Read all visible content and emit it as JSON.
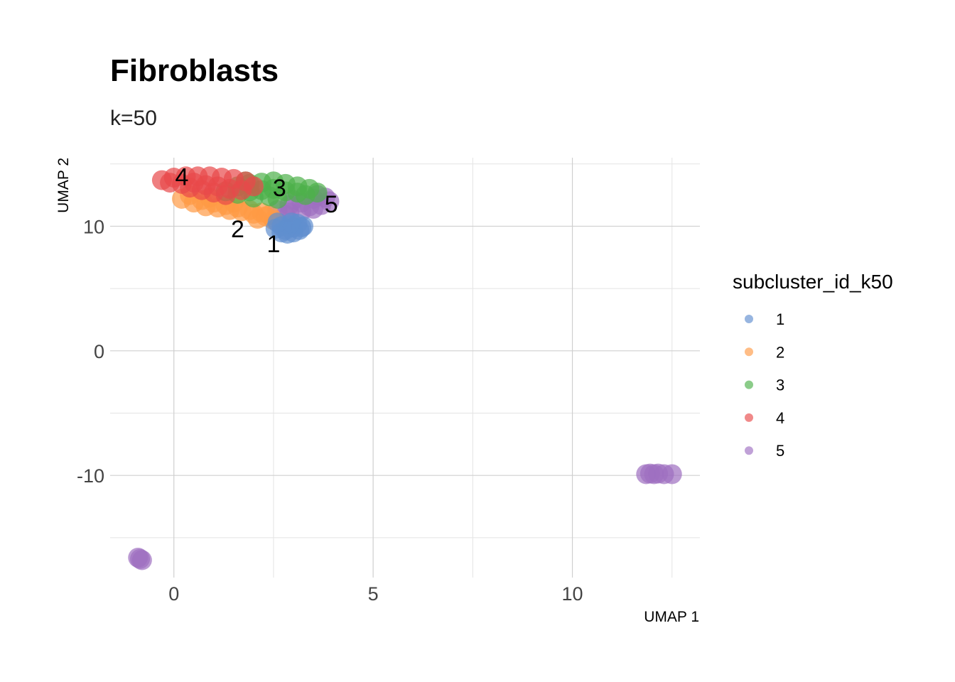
{
  "chart_data": {
    "type": "scatter",
    "title": "Fibroblasts",
    "subtitle": "k=50",
    "xlabel": "UMAP 1",
    "ylabel": "UMAP 2",
    "xlim": [
      -1.6,
      13.2
    ],
    "ylim": [
      -18.2,
      15.5
    ],
    "x_ticks": [
      0,
      5,
      10
    ],
    "y_ticks": [
      10,
      0,
      -10
    ],
    "x_tick_labels": [
      "0",
      "5",
      "10"
    ],
    "y_tick_labels": [
      "10",
      "0",
      "-10"
    ],
    "grid": true,
    "legend": {
      "title": "subcluster_id_k50",
      "position": "right"
    },
    "series": [
      {
        "name": "1",
        "color": "#5F8ECF",
        "points": [
          [
            2.55,
            9.8
          ],
          [
            2.7,
            9.5
          ],
          [
            2.85,
            9.4
          ],
          [
            3.0,
            9.5
          ],
          [
            3.15,
            9.7
          ],
          [
            3.25,
            10.0
          ],
          [
            3.1,
            10.2
          ],
          [
            2.9,
            10.1
          ],
          [
            2.7,
            10.0
          ],
          [
            2.6,
            10.3
          ],
          [
            3.0,
            9.9
          ],
          [
            2.8,
            9.7
          ],
          [
            3.2,
            9.9
          ],
          [
            2.95,
            10.3
          ]
        ],
        "label_pos": [
          2.5,
          8.6
        ]
      },
      {
        "name": "2",
        "color": "#FF9A45",
        "points": [
          [
            0.2,
            12.2
          ],
          [
            0.5,
            11.9
          ],
          [
            0.8,
            11.6
          ],
          [
            1.1,
            11.5
          ],
          [
            1.4,
            11.3
          ],
          [
            1.7,
            11.2
          ],
          [
            2.0,
            11.0
          ],
          [
            2.3,
            10.8
          ],
          [
            2.5,
            10.5
          ],
          [
            0.4,
            12.5
          ],
          [
            0.7,
            12.1
          ],
          [
            1.0,
            11.9
          ],
          [
            1.3,
            11.7
          ],
          [
            1.6,
            11.5
          ],
          [
            1.9,
            11.3
          ],
          [
            2.2,
            11.1
          ],
          [
            2.4,
            10.9
          ],
          [
            0.9,
            12.3
          ],
          [
            1.5,
            11.9
          ],
          [
            2.1,
            10.6
          ]
        ],
        "label_pos": [
          1.6,
          9.8
        ]
      },
      {
        "name": "3",
        "color": "#4DB04A",
        "points": [
          [
            1.3,
            12.8
          ],
          [
            1.6,
            13.2
          ],
          [
            1.9,
            13.4
          ],
          [
            2.2,
            13.5
          ],
          [
            2.5,
            13.6
          ],
          [
            2.8,
            13.4
          ],
          [
            3.1,
            13.2
          ],
          [
            3.4,
            13.0
          ],
          [
            3.6,
            12.7
          ],
          [
            1.6,
            12.6
          ],
          [
            1.9,
            12.8
          ],
          [
            2.2,
            12.9
          ],
          [
            2.5,
            13.0
          ],
          [
            2.8,
            12.8
          ],
          [
            3.1,
            12.7
          ],
          [
            2.0,
            12.3
          ],
          [
            2.4,
            12.4
          ],
          [
            3.3,
            12.5
          ],
          [
            1.8,
            13.6
          ],
          [
            2.6,
            12.2
          ]
        ],
        "label_pos": [
          2.65,
          13.1
        ]
      },
      {
        "name": "4",
        "color": "#E8494A",
        "points": [
          [
            -0.3,
            13.7
          ],
          [
            0.0,
            13.9
          ],
          [
            0.3,
            14.0
          ],
          [
            0.6,
            14.0
          ],
          [
            0.9,
            14.0
          ],
          [
            1.2,
            13.9
          ],
          [
            1.5,
            13.8
          ],
          [
            1.8,
            13.6
          ],
          [
            2.0,
            13.2
          ],
          [
            0.2,
            13.4
          ],
          [
            0.5,
            13.5
          ],
          [
            0.8,
            13.3
          ],
          [
            1.1,
            13.2
          ],
          [
            1.4,
            13.0
          ],
          [
            1.7,
            12.9
          ],
          [
            0.4,
            13.1
          ],
          [
            0.7,
            12.9
          ],
          [
            1.0,
            12.7
          ],
          [
            -0.1,
            13.5
          ],
          [
            1.3,
            12.5
          ]
        ],
        "label_pos": [
          0.2,
          14.0
        ]
      },
      {
        "name": "5",
        "color": "#9E6FC1",
        "points": [
          [
            2.6,
            11.3
          ],
          [
            2.9,
            11.1
          ],
          [
            3.2,
            11.2
          ],
          [
            3.5,
            11.4
          ],
          [
            3.7,
            11.7
          ],
          [
            3.9,
            12.0
          ],
          [
            3.8,
            12.3
          ],
          [
            3.5,
            12.2
          ],
          [
            3.2,
            11.9
          ],
          [
            2.9,
            11.7
          ],
          [
            3.0,
            12.1
          ],
          [
            3.6,
            12.5
          ],
          [
            2.8,
            10.9
          ],
          [
            3.4,
            11.6
          ],
          [
            -0.9,
            -16.6
          ],
          [
            -0.85,
            -16.7
          ],
          [
            -0.8,
            -16.8
          ],
          [
            11.85,
            -9.9
          ],
          [
            11.95,
            -9.85
          ],
          [
            12.05,
            -9.9
          ],
          [
            12.15,
            -9.85
          ],
          [
            12.3,
            -9.9
          ],
          [
            12.5,
            -9.9
          ]
        ],
        "label_pos": [
          3.95,
          11.8
        ]
      }
    ]
  }
}
